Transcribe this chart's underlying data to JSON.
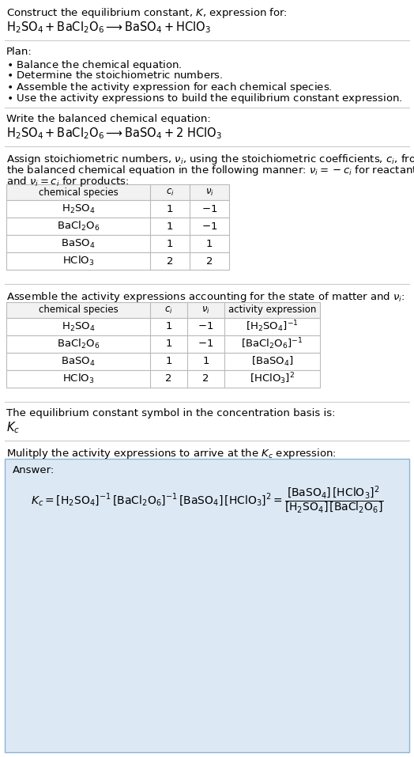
{
  "bg_color": "#ffffff",
  "text_color": "#000000",
  "title_line1": "Construct the equilibrium constant, $K$, expression for:",
  "title_line2": "$\\mathrm{H_2SO_4 + BaCl_2O_6 \\longrightarrow BaSO_4 + HClO_3}$",
  "plan_header": "Plan:",
  "plan_items": [
    "$\\bullet$ Balance the chemical equation.",
    "$\\bullet$ Determine the stoichiometric numbers.",
    "$\\bullet$ Assemble the activity expression for each chemical species.",
    "$\\bullet$ Use the activity expressions to build the equilibrium constant expression."
  ],
  "balanced_header": "Write the balanced chemical equation:",
  "balanced_eq": "$\\mathrm{H_2SO_4 + BaCl_2O_6 \\longrightarrow BaSO_4 + 2\\ HClO_3}$",
  "stoich_intro1": "Assign stoichiometric numbers, $\\nu_i$, using the stoichiometric coefficients, $c_i$, from",
  "stoich_intro2": "the balanced chemical equation in the following manner: $\\nu_i = -c_i$ for reactants",
  "stoich_intro3": "and $\\nu_i = c_i$ for products:",
  "table1_headers": [
    "chemical species",
    "$c_i$",
    "$\\nu_i$"
  ],
  "table1_rows": [
    [
      "$\\mathrm{H_2SO_4}$",
      "1",
      "$-1$"
    ],
    [
      "$\\mathrm{BaCl_2O_6}$",
      "1",
      "$-1$"
    ],
    [
      "$\\mathrm{BaSO_4}$",
      "1",
      "1"
    ],
    [
      "$\\mathrm{HClO_3}$",
      "2",
      "2"
    ]
  ],
  "activity_intro": "Assemble the activity expressions accounting for the state of matter and $\\nu_i$:",
  "table2_headers": [
    "chemical species",
    "$c_i$",
    "$\\nu_i$",
    "activity expression"
  ],
  "table2_rows": [
    [
      "$\\mathrm{H_2SO_4}$",
      "1",
      "$-1$",
      "$[\\mathrm{H_2SO_4}]^{-1}$"
    ],
    [
      "$\\mathrm{BaCl_2O_6}$",
      "1",
      "$-1$",
      "$[\\mathrm{BaCl_2O_6}]^{-1}$"
    ],
    [
      "$\\mathrm{BaSO_4}$",
      "1",
      "1",
      "$[\\mathrm{BaSO_4}]$"
    ],
    [
      "$\\mathrm{HClO_3}$",
      "2",
      "2",
      "$[\\mathrm{HClO_3}]^2$"
    ]
  ],
  "kc_intro": "The equilibrium constant symbol in the concentration basis is:",
  "kc_symbol": "$K_c$",
  "multiply_intro": "Mulitply the activity expressions to arrive at the $K_c$ expression:",
  "answer_label": "Answer:",
  "answer_eq": "$K_c = [\\mathrm{H_2SO_4}]^{-1}\\,[\\mathrm{BaCl_2O_6}]^{-1}\\,[\\mathrm{BaSO_4}]\\,[\\mathrm{HClO_3}]^2 = \\dfrac{[\\mathrm{BaSO_4}]\\,[\\mathrm{HClO_3}]^2}{[\\mathrm{H_2SO_4}]\\,[\\mathrm{BaCl_2O_6}]}$",
  "answer_box_color": "#dce9f5",
  "answer_box_border": "#8eb4d8",
  "table_line_color": "#bbbbbb",
  "sep_line_color": "#cccccc",
  "font_size": 9.5
}
